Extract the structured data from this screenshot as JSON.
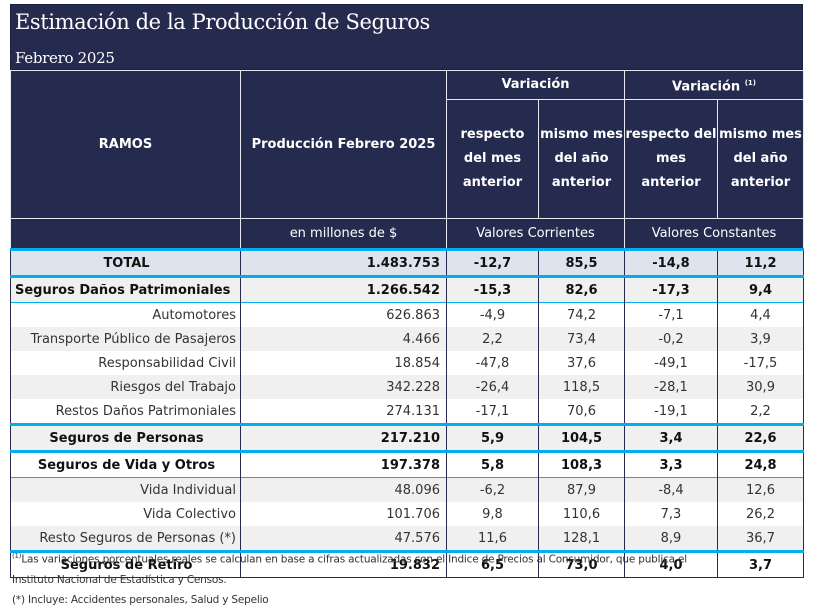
{
  "header": {
    "title": "Estimación de la Producción de Seguros",
    "subtitle": "Febrero 2025"
  },
  "columns": {
    "ramos": "RAMOS",
    "produccion": "Producción Febrero 2025",
    "variacion": "Variación",
    "variacion_real": "Variación",
    "variacion_real_sup": "(1)",
    "respecto_mes_anterior": "respecto del mes anterior",
    "mismo_mes_anio_anterior": "mismo mes del año anterior",
    "unit_produccion": "en millones de $",
    "unit_corrientes": "Valores Corrientes",
    "unit_constantes": "Valores Constantes"
  },
  "colors": {
    "header_bg": "#252b4f",
    "accent_line": "#00aeef",
    "total_bg": "#dde4ee"
  },
  "rows": [
    {
      "name": "TOTAL",
      "produccion": "1.483.753",
      "var_mes": "-12,7",
      "var_anio": "85,5",
      "real_mes": "-14,8",
      "real_anio": "11,2"
    },
    {
      "name": "Seguros Daños Patrimoniales",
      "produccion": "1.266.542",
      "var_mes": "-15,3",
      "var_anio": "82,6",
      "real_mes": "-17,3",
      "real_anio": "9,4"
    },
    {
      "name": "Automotores",
      "produccion": "626.863",
      "var_mes": "-4,9",
      "var_anio": "74,2",
      "real_mes": "-7,1",
      "real_anio": "4,4"
    },
    {
      "name": "Transporte Público de Pasajeros",
      "produccion": "4.466",
      "var_mes": "2,2",
      "var_anio": "73,4",
      "real_mes": "-0,2",
      "real_anio": "3,9"
    },
    {
      "name": "Responsabilidad Civil",
      "produccion": "18.854",
      "var_mes": "-47,8",
      "var_anio": "37,6",
      "real_mes": "-49,1",
      "real_anio": "-17,5"
    },
    {
      "name": "Riesgos del Trabajo",
      "produccion": "342.228",
      "var_mes": "-26,4",
      "var_anio": "118,5",
      "real_mes": "-28,1",
      "real_anio": "30,9"
    },
    {
      "name": "Restos Daños Patrimoniales",
      "produccion": "274.131",
      "var_mes": "-17,1",
      "var_anio": "70,6",
      "real_mes": "-19,1",
      "real_anio": "2,2"
    },
    {
      "name": "Seguros de Personas",
      "produccion": "217.210",
      "var_mes": "5,9",
      "var_anio": "104,5",
      "real_mes": "3,4",
      "real_anio": "22,6"
    },
    {
      "name": "Seguros de Vida y Otros",
      "produccion": "197.378",
      "var_mes": "5,8",
      "var_anio": "108,3",
      "real_mes": "3,3",
      "real_anio": "24,8"
    },
    {
      "name": "Vida Individual",
      "produccion": "48.096",
      "var_mes": "-6,2",
      "var_anio": "87,9",
      "real_mes": "-8,4",
      "real_anio": "12,6"
    },
    {
      "name": "Vida Colectivo",
      "produccion": "101.706",
      "var_mes": "9,8",
      "var_anio": "110,6",
      "real_mes": "7,3",
      "real_anio": "26,2"
    },
    {
      "name": "Resto Seguros de Personas (*)",
      "produccion": "47.576",
      "var_mes": "11,6",
      "var_anio": "128,1",
      "real_mes": "8,9",
      "real_anio": "36,7"
    },
    {
      "name": "Seguros de Retiro",
      "produccion": "19.832",
      "var_mes": "6,5",
      "var_anio": "73,0",
      "real_mes": "4,0",
      "real_anio": "3,7"
    }
  ],
  "notes": {
    "note1_sup": "(1)",
    "note1_line1": "Las variaciones porcentuales reales se calculan en base a cifras actualizadas con  el Indice de Precios al Consumidor, que publica el",
    "note1_line2": "Instituto Nacional de Estadística y  Censos.",
    "note2": "(*) Incluye: Accidentes personales, Salud y Sepelio"
  }
}
